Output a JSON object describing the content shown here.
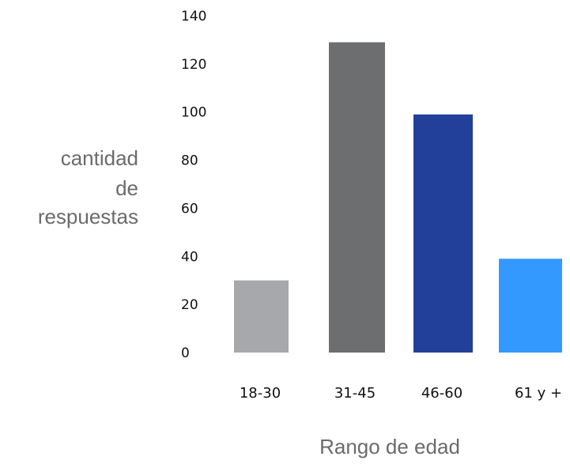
{
  "chart_data": {
    "type": "bar",
    "categories": [
      "18-30",
      "31-45",
      "46-60",
      "61 y +"
    ],
    "values": [
      30,
      129,
      99,
      39
    ],
    "colors": [
      "#a7a8ab",
      "#6d6e70",
      "#22409a",
      "#3399ff"
    ],
    "xlabel": "Rango de edad",
    "ylabel_lines": [
      "cantidad",
      "de",
      "respuestas"
    ],
    "ylim": [
      0,
      140
    ],
    "yticks": [
      "0",
      "20",
      "40",
      "60",
      "80",
      "100",
      "120",
      "140"
    ],
    "grid": false
  }
}
